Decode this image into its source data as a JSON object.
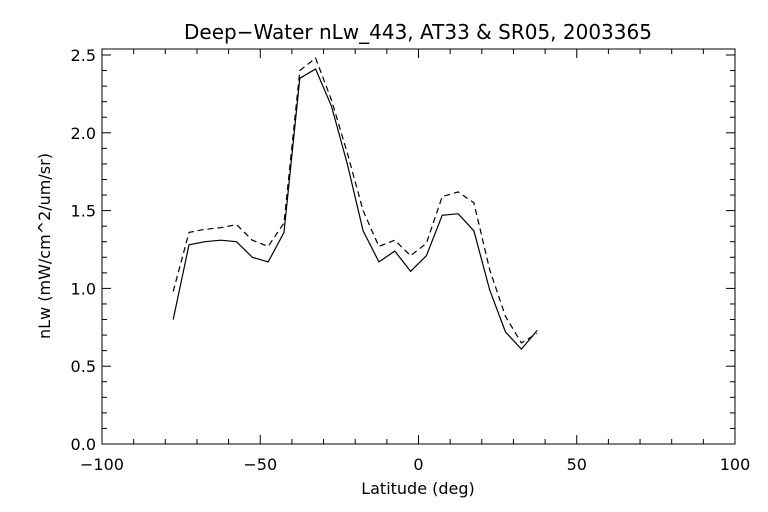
{
  "chart_data": {
    "type": "line",
    "title": "Deep−Water nLw_443, AT33 & SR05, 2003365",
    "xlabel": "Latitude (deg)",
    "ylabel": "nLw (mW/cm^2/um/sr)",
    "xlim": [
      -100,
      100
    ],
    "ylim": [
      0.0,
      2.5
    ],
    "xticks": [
      -100,
      -50,
      0,
      50,
      100
    ],
    "xtick_labels": [
      "−100",
      "−50",
      "0",
      "50",
      "100"
    ],
    "yticks": [
      0.0,
      0.5,
      1.0,
      1.5,
      2.0,
      2.5
    ],
    "ytick_labels": [
      "0.0",
      "0.5",
      "1.0",
      "1.5",
      "2.0",
      "2.5"
    ],
    "grid": false,
    "series": [
      {
        "style": "solid",
        "color": "#000000",
        "x": [
          -77.5,
          -72.5,
          -67.5,
          -62.5,
          -57.5,
          -52.5,
          -47.5,
          -42.5,
          -37.5,
          -32.5,
          -27.5,
          -22.5,
          -17.5,
          -12.5,
          -7.5,
          -2.5,
          2.5,
          7.5,
          12.5,
          17.5,
          22.5,
          27.5,
          32.5,
          37.5,
          42.5
        ],
        "values": [
          0.8,
          1.28,
          1.3,
          1.31,
          1.3,
          1.2,
          1.17,
          1.36,
          2.35,
          2.41,
          2.17,
          1.8,
          1.37,
          1.17,
          1.24,
          1.11,
          1.21,
          1.47,
          1.48,
          1.37,
          0.99,
          0.72,
          0.61,
          0.73,
          null
        ]
      },
      {
        "style": "dashed",
        "color": "#000000",
        "x": [
          -77.5,
          -72.5,
          -67.5,
          -62.5,
          -57.5,
          -52.5,
          -47.5,
          -42.5,
          -37.5,
          -32.5,
          -27.5,
          -22.5,
          -17.5,
          -12.5,
          -7.5,
          -2.5,
          2.5,
          7.5,
          12.5,
          17.5,
          22.5,
          27.5,
          32.5,
          37.5,
          42.5
        ],
        "values": [
          0.98,
          1.36,
          1.38,
          1.39,
          1.41,
          1.31,
          1.27,
          1.42,
          2.4,
          2.48,
          2.21,
          1.87,
          1.5,
          1.27,
          1.31,
          1.21,
          1.29,
          1.59,
          1.62,
          1.55,
          1.12,
          0.82,
          0.65,
          0.71,
          null
        ]
      }
    ]
  }
}
